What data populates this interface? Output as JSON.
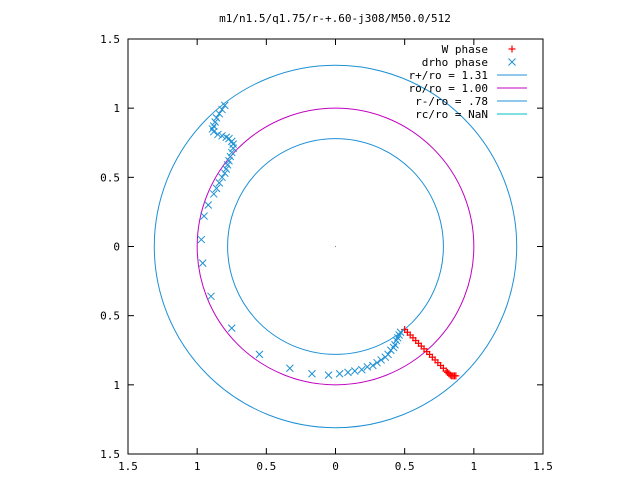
{
  "chart_data": {
    "type": "scatter",
    "title": "m1/n1.5/q1.75/r-+.60-j308/M50.0/512",
    "xlim": [
      -1.5,
      1.5
    ],
    "ylim": [
      -1.5,
      1.5
    ],
    "xticks": [
      -1.5,
      -1,
      -0.5,
      0,
      0.5,
      1,
      1.5
    ],
    "yticks": [
      -1.5,
      -1,
      -0.5,
      0,
      0.5,
      1,
      1.5
    ],
    "tick_labels": {
      "x": [
        "1.5",
        "1",
        "0.5",
        "0",
        "0.5",
        "1",
        "1.5"
      ],
      "y": [
        "1.5",
        "1",
        "0.5",
        "0",
        "0.5",
        "1",
        "1.5"
      ]
    },
    "legend_position": "top-right",
    "grid": false,
    "series": [
      {
        "name": "W phase",
        "kind": "points",
        "marker": "+",
        "color": "#ff0000",
        "points": [
          [
            0.5,
            -0.6
          ],
          [
            0.52,
            -0.62
          ],
          [
            0.54,
            -0.64
          ],
          [
            0.56,
            -0.66
          ],
          [
            0.58,
            -0.68
          ],
          [
            0.6,
            -0.7
          ],
          [
            0.62,
            -0.72
          ],
          [
            0.64,
            -0.74
          ],
          [
            0.66,
            -0.76
          ],
          [
            0.68,
            -0.78
          ],
          [
            0.7,
            -0.8
          ],
          [
            0.72,
            -0.82
          ],
          [
            0.74,
            -0.84
          ],
          [
            0.76,
            -0.86
          ],
          [
            0.78,
            -0.88
          ],
          [
            0.8,
            -0.9
          ],
          [
            0.81,
            -0.91
          ],
          [
            0.82,
            -0.92
          ],
          [
            0.83,
            -0.93
          ],
          [
            0.84,
            -0.935
          ],
          [
            0.85,
            -0.935
          ],
          [
            0.86,
            -0.935
          ],
          [
            0.87,
            -0.935
          ]
        ]
      },
      {
        "name": "drho phase",
        "kind": "points",
        "marker": "x",
        "color": "#1e90d4",
        "points": [
          [
            -0.97,
            0.05
          ],
          [
            -0.96,
            -0.12
          ],
          [
            -0.9,
            -0.36
          ],
          [
            -0.75,
            -0.59
          ],
          [
            -0.55,
            -0.78
          ],
          [
            -0.33,
            -0.88
          ],
          [
            -0.17,
            -0.92
          ],
          [
            -0.05,
            -0.93
          ],
          [
            0.03,
            -0.92
          ],
          [
            0.09,
            -0.91
          ],
          [
            0.14,
            -0.9
          ],
          [
            0.19,
            -0.89
          ],
          [
            0.23,
            -0.87
          ],
          [
            0.27,
            -0.86
          ],
          [
            0.3,
            -0.84
          ],
          [
            0.33,
            -0.82
          ],
          [
            0.36,
            -0.8
          ],
          [
            0.38,
            -0.78
          ],
          [
            0.4,
            -0.75
          ],
          [
            0.42,
            -0.73
          ],
          [
            0.43,
            -0.71
          ],
          [
            0.44,
            -0.68
          ],
          [
            0.45,
            -0.66
          ],
          [
            0.46,
            -0.64
          ],
          [
            0.47,
            -0.62
          ],
          [
            -0.95,
            0.22
          ],
          [
            -0.92,
            0.3
          ],
          [
            -0.88,
            0.38
          ],
          [
            -0.86,
            0.42
          ],
          [
            -0.84,
            0.46
          ],
          [
            -0.82,
            0.5
          ],
          [
            -0.8,
            0.53
          ],
          [
            -0.79,
            0.56
          ],
          [
            -0.78,
            0.59
          ],
          [
            -0.77,
            0.62
          ],
          [
            -0.76,
            0.65
          ],
          [
            -0.75,
            0.68
          ],
          [
            -0.74,
            0.71
          ],
          [
            -0.74,
            0.74
          ],
          [
            -0.75,
            0.76
          ],
          [
            -0.77,
            0.78
          ],
          [
            -0.79,
            0.79
          ],
          [
            -0.82,
            0.8
          ],
          [
            -0.85,
            0.81
          ],
          [
            -0.88,
            0.83
          ],
          [
            -0.89,
            0.85
          ],
          [
            -0.88,
            0.87
          ],
          [
            -0.87,
            0.9
          ],
          [
            -0.86,
            0.93
          ],
          [
            -0.84,
            0.96
          ],
          [
            -0.82,
            0.99
          ],
          [
            -0.8,
            1.02
          ]
        ]
      },
      {
        "name": "r+/ro = 1.31",
        "kind": "circle",
        "radius": 1.31,
        "color": "#1e90d4"
      },
      {
        "name": "ro/ro = 1.00",
        "kind": "circle",
        "radius": 1.0,
        "color": "#c000c0"
      },
      {
        "name": "r-/ro = .78",
        "kind": "circle",
        "radius": 0.78,
        "color": "#1e90d4"
      },
      {
        "name": "rc/ro = NaN",
        "kind": "circle",
        "radius": null,
        "color": "#00c0c0"
      }
    ]
  }
}
